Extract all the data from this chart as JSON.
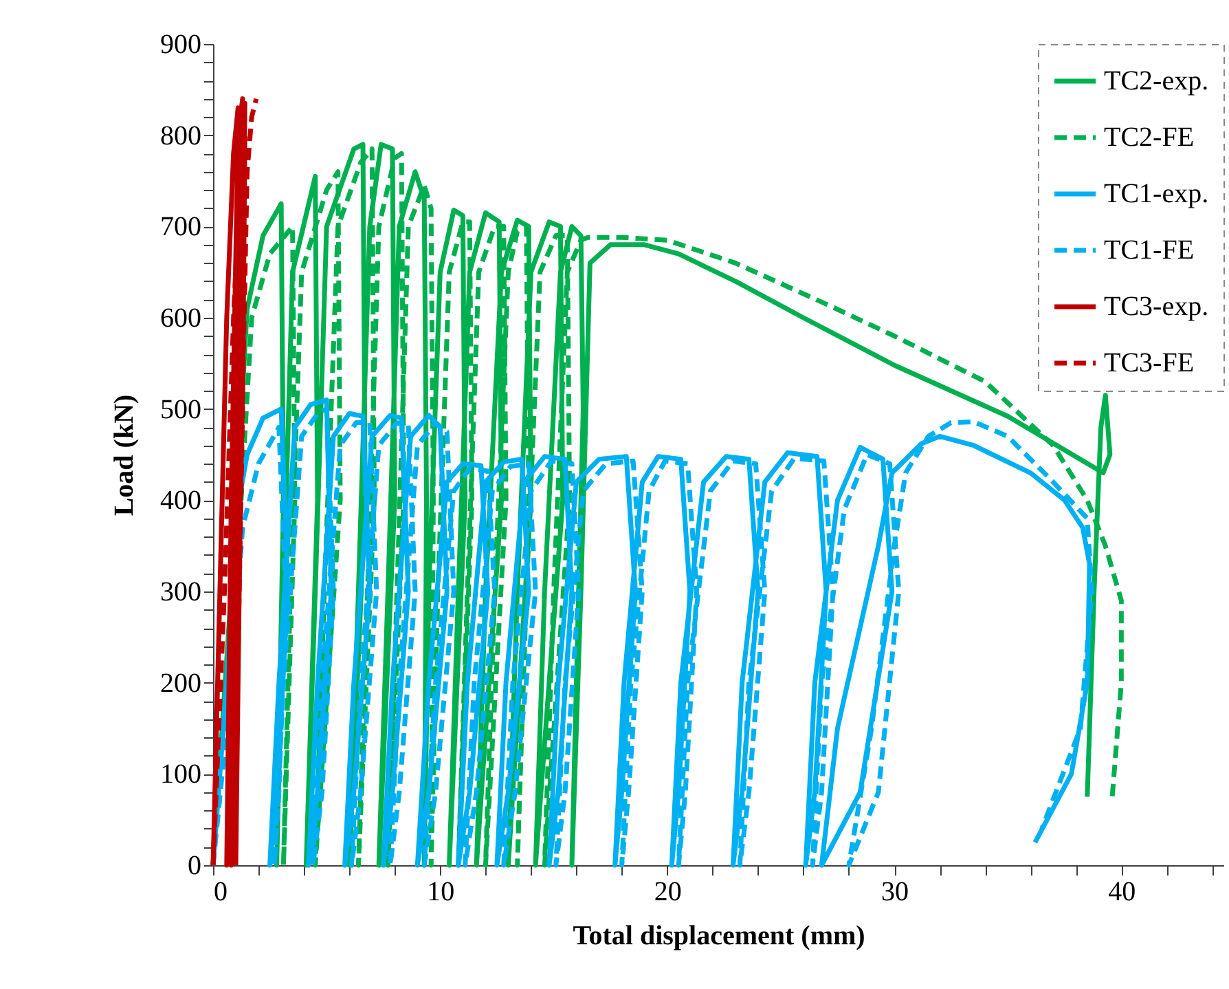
{
  "chart_data": {
    "type": "line",
    "xlabel": "Total displacement (mm)",
    "ylabel": "Load (kN)",
    "xlim": [
      0,
      44.5
    ],
    "ylim": [
      0,
      900
    ],
    "xticks": [
      0,
      {
        "value": 2,
        "label": null
      },
      {
        "value": 4,
        "label": null
      },
      {
        "value": 6,
        "label": null
      },
      {
        "value": 8,
        "label": null
      },
      10,
      {
        "value": 12,
        "label": null
      },
      {
        "value": 14,
        "label": null
      },
      {
        "value": 16,
        "label": null
      },
      {
        "value": 18,
        "label": null
      },
      20,
      {
        "value": 22,
        "label": null
      },
      {
        "value": 24,
        "label": null
      },
      {
        "value": 26,
        "label": null
      },
      {
        "value": 28,
        "label": null
      },
      30,
      {
        "value": 32,
        "label": null
      },
      {
        "value": 34,
        "label": null
      },
      {
        "value": 36,
        "label": null
      },
      {
        "value": 38,
        "label": null
      },
      40,
      {
        "value": 42,
        "label": null
      },
      {
        "value": 44,
        "label": null
      }
    ],
    "yticks": [
      0,
      {
        "value": 20,
        "label": null
      },
      {
        "value": 40,
        "label": null
      },
      {
        "value": 60,
        "label": null
      },
      {
        "value": 80,
        "label": null
      },
      100,
      {
        "value": 120,
        "label": null
      },
      {
        "value": 140,
        "label": null
      },
      {
        "value": 160,
        "label": null
      },
      {
        "value": 180,
        "label": null
      },
      200,
      {
        "value": 220,
        "label": null
      },
      {
        "value": 240,
        "label": null
      },
      {
        "value": 260,
        "label": null
      },
      {
        "value": 280,
        "label": null
      },
      300,
      {
        "value": 320,
        "label": null
      },
      {
        "value": 340,
        "label": null
      },
      {
        "value": 360,
        "label": null
      },
      {
        "value": 380,
        "label": null
      },
      400,
      {
        "value": 420,
        "label": null
      },
      {
        "value": 440,
        "label": null
      },
      {
        "value": 460,
        "label": null
      },
      {
        "value": 480,
        "label": null
      },
      500,
      {
        "value": 520,
        "label": null
      },
      {
        "value": 540,
        "label": null
      },
      {
        "value": 560,
        "label": null
      },
      {
        "value": 580,
        "label": null
      },
      600,
      {
        "value": 620,
        "label": null
      },
      {
        "value": 640,
        "label": null
      },
      {
        "value": 660,
        "label": null
      },
      {
        "value": 680,
        "label": null
      },
      700,
      {
        "value": 720,
        "label": null
      },
      {
        "value": 740,
        "label": null
      },
      {
        "value": 760,
        "label": null
      },
      {
        "value": 780,
        "label": null
      },
      800,
      {
        "value": 820,
        "label": null
      },
      {
        "value": 840,
        "label": null
      },
      {
        "value": 860,
        "label": null
      },
      {
        "value": 880,
        "label": null
      },
      900
    ],
    "grid": false,
    "legend": "top right",
    "marker": "none",
    "series": [
      {
        "name": "TC2-exp.",
        "color": "#00b050",
        "line_style": "solid",
        "x": [
          0,
          0.8,
          1.5,
          2.2,
          3.0,
          3.1,
          2.8,
          3.1,
          3.5,
          4.5,
          4.6,
          4.1,
          4.5,
          5.0,
          6.2,
          6.6,
          6.7,
          6.0,
          6.4,
          6.9,
          7.4,
          7.9,
          8.0,
          7.3,
          7.7,
          8.2,
          8.9,
          9.3,
          9.4,
          9.3,
          9.5,
          10.0,
          10.6,
          11.0,
          11.1,
          10.4,
          10.8,
          11.3,
          12.0,
          12.6,
          12.7,
          11.6,
          12.0,
          12.7,
          13.4,
          13.9,
          14.0,
          13.0,
          13.4,
          14.0,
          14.8,
          15.3,
          15.4,
          14.2,
          14.6,
          15.3,
          15.8,
          16.2,
          16.3,
          15.8,
          16.2,
          16.6,
          17.5,
          19.0,
          20.5,
          23,
          26,
          30,
          35,
          39.2,
          39.5,
          39.3,
          39.1,
          38.8,
          38.5
        ],
        "values": [
          0,
          300,
          610,
          690,
          725,
          400,
          0,
          300,
          650,
          755,
          400,
          0,
          300,
          700,
          785,
          790,
          400,
          0,
          300,
          700,
          790,
          785,
          400,
          0,
          300,
          700,
          760,
          730,
          400,
          0,
          300,
          650,
          718,
          712,
          400,
          0,
          300,
          650,
          715,
          705,
          400,
          0,
          300,
          650,
          707,
          700,
          400,
          0,
          300,
          650,
          705,
          700,
          400,
          0,
          300,
          650,
          700,
          690,
          500,
          0,
          300,
          660,
          680,
          680,
          670,
          640,
          600,
          548,
          492,
          430,
          450,
          515,
          480,
          300,
          75
        ]
      },
      {
        "name": "TC2-FE",
        "color": "#00b050",
        "line_style": "dashed",
        "x": [
          0,
          1.0,
          1.7,
          2.5,
          3.5,
          3.6,
          3.1,
          3.4,
          3.9,
          5.0,
          5.5,
          5.6,
          4.5,
          4.9,
          5.5,
          6.5,
          7.0,
          7.1,
          6.4,
          6.8,
          7.3,
          8.0,
          8.3,
          8.4,
          7.7,
          8.1,
          8.6,
          9.3,
          9.6,
          9.7,
          9.6,
          9.9,
          10.4,
          11.0,
          11.3,
          11.4,
          10.8,
          11.2,
          11.7,
          12.4,
          12.8,
          12.9,
          12.0,
          12.4,
          13.0,
          13.4,
          13.8,
          13.9,
          13.4,
          13.8,
          14.4,
          15.1,
          15.6,
          15.7,
          14.6,
          15.0,
          15.6,
          16.2,
          16.5,
          18,
          20,
          23,
          27,
          30,
          34,
          37,
          38.5,
          39.3,
          40.0,
          40.0,
          39.6
        ],
        "values": [
          0,
          300,
          600,
          670,
          700,
          400,
          0,
          300,
          650,
          740,
          760,
          400,
          0,
          300,
          700,
          770,
          785,
          400,
          0,
          300,
          700,
          775,
          780,
          400,
          0,
          300,
          700,
          745,
          720,
          400,
          0,
          300,
          650,
          705,
          705,
          400,
          0,
          300,
          650,
          700,
          700,
          400,
          0,
          300,
          650,
          695,
          700,
          400,
          0,
          300,
          650,
          690,
          690,
          400,
          0,
          300,
          650,
          685,
          688,
          688,
          685,
          660,
          615,
          580,
          530,
          460,
          400,
          350,
          290,
          200,
          75
        ]
      },
      {
        "name": "TC1-exp.",
        "color": "#00b0f0",
        "line_style": "solid",
        "x": [
          0,
          0.6,
          1.0,
          1.5,
          2.2,
          3.0,
          3.3,
          2.8,
          2.5,
          2.9,
          3.6,
          4.3,
          5.0,
          5.2,
          4.6,
          4.2,
          4.6,
          5.3,
          6.0,
          6.6,
          6.9,
          6.2,
          5.8,
          6.2,
          7.0,
          7.8,
          8.3,
          8.6,
          7.9,
          7.5,
          7.9,
          8.7,
          9.5,
          10.0,
          10.3,
          9.5,
          9.0,
          9.5,
          10.3,
          11.0,
          11.8,
          12.1,
          11.3,
          10.8,
          11.2,
          12.0,
          12.8,
          13.6,
          13.9,
          13.0,
          12.5,
          12.9,
          13.7,
          14.6,
          15.5,
          15.8,
          15.2,
          14.8,
          15.2,
          16.0,
          17.0,
          18.2,
          18.6,
          18.0,
          17.7,
          18.1,
          18.9,
          19.6,
          20.6,
          21.0,
          20.5,
          20.2,
          20.6,
          21.6,
          22.6,
          23.6,
          24.0,
          23.3,
          22.9,
          23.3,
          24.3,
          25.3,
          26.6,
          27.0,
          26.5,
          26.1,
          26.5,
          27.5,
          28.5,
          29.5,
          29.9,
          28.5,
          26.8,
          27.5,
          29.3,
          29.9,
          31.2,
          32.0,
          33.5,
          36,
          37.5,
          38.3,
          38.6,
          38.5,
          37.8,
          36.2
        ],
        "values": [
          0,
          200,
          380,
          450,
          490,
          500,
          300,
          80,
          0,
          200,
          480,
          505,
          510,
          300,
          80,
          0,
          200,
          470,
          495,
          492,
          300,
          80,
          0,
          200,
          470,
          493,
          490,
          300,
          80,
          0,
          200,
          470,
          493,
          480,
          300,
          80,
          0,
          200,
          420,
          440,
          438,
          300,
          80,
          0,
          200,
          420,
          442,
          445,
          300,
          80,
          0,
          200,
          420,
          448,
          445,
          300,
          80,
          0,
          200,
          420,
          445,
          448,
          300,
          80,
          0,
          200,
          420,
          448,
          445,
          300,
          80,
          0,
          200,
          420,
          448,
          445,
          300,
          80,
          0,
          200,
          420,
          452,
          448,
          300,
          80,
          0,
          200,
          400,
          458,
          445,
          300,
          80,
          0,
          150,
          350,
          430,
          462,
          470,
          460,
          430,
          400,
          370,
          330,
          200,
          100,
          25
        ]
      },
      {
        "name": "TC1-FE",
        "color": "#00b0f0",
        "line_style": "dashed",
        "x": [
          0,
          0.8,
          1.3,
          2.0,
          2.9,
          3.2,
          2.9,
          2.7,
          3.1,
          3.9,
          4.6,
          5.0,
          5.3,
          4.8,
          4.4,
          4.8,
          5.6,
          6.3,
          6.9,
          7.2,
          6.5,
          6.1,
          6.5,
          7.3,
          8.1,
          8.6,
          8.9,
          8.2,
          7.8,
          8.2,
          9.0,
          9.8,
          10.3,
          10.6,
          9.8,
          9.3,
          9.8,
          10.6,
          11.3,
          12.1,
          12.4,
          11.6,
          11.1,
          11.5,
          12.3,
          13.1,
          13.9,
          14.2,
          13.3,
          12.8,
          13.2,
          14.0,
          14.9,
          15.8,
          16.1,
          15.5,
          15.1,
          15.5,
          16.3,
          17.3,
          18.5,
          18.9,
          18.3,
          18.0,
          18.4,
          19.2,
          19.9,
          20.9,
          21.3,
          20.8,
          20.5,
          20.9,
          21.9,
          22.9,
          23.9,
          24.3,
          23.6,
          23.2,
          23.6,
          24.6,
          25.6,
          26.9,
          27.3,
          26.8,
          26.4,
          26.8,
          27.8,
          28.8,
          29.8,
          30.2,
          29.3,
          28.0,
          29.0,
          30.0,
          30.5,
          31.5,
          32.5,
          33.5,
          35,
          37,
          38.5,
          38.7,
          38.2,
          36.5
        ],
        "values": [
          0,
          200,
          370,
          440,
          480,
          300,
          80,
          0,
          200,
          470,
          495,
          500,
          300,
          80,
          0,
          200,
          460,
          485,
          485,
          300,
          80,
          0,
          200,
          460,
          485,
          482,
          300,
          80,
          0,
          200,
          460,
          485,
          475,
          300,
          80,
          0,
          200,
          410,
          435,
          432,
          300,
          80,
          0,
          200,
          410,
          437,
          440,
          300,
          80,
          0,
          200,
          410,
          443,
          440,
          300,
          80,
          0,
          200,
          410,
          440,
          443,
          300,
          80,
          0,
          200,
          410,
          443,
          440,
          300,
          80,
          0,
          200,
          410,
          443,
          440,
          300,
          80,
          0,
          200,
          410,
          446,
          443,
          300,
          80,
          0,
          200,
          390,
          450,
          440,
          300,
          80,
          0,
          150,
          350,
          430,
          470,
          485,
          486,
          470,
          420,
          380,
          300,
          150,
          40
        ]
      },
      {
        "name": "TC3-exp.",
        "color": "#c00000",
        "line_style": "solid",
        "x": [
          0,
          0.3,
          0.6,
          0.9,
          1.1,
          1.0,
          0.6,
          0.8,
          1.1,
          1.3,
          1.2,
          0.8,
          0.9,
          1.2,
          1.4,
          1.3,
          1.0
        ],
        "values": [
          0,
          300,
          600,
          780,
          830,
          400,
          0,
          400,
          800,
          840,
          500,
          0,
          400,
          790,
          835,
          600,
          0
        ]
      },
      {
        "name": "TC3-FE",
        "color": "#c00000",
        "line_style": "dashed",
        "x": [
          0,
          0.5,
          0.9,
          1.2,
          1.4,
          1.3,
          1.0,
          1.2,
          1.5,
          1.7,
          1.9
        ],
        "values": [
          0,
          300,
          600,
          760,
          800,
          500,
          100,
          400,
          760,
          820,
          840
        ]
      }
    ]
  }
}
